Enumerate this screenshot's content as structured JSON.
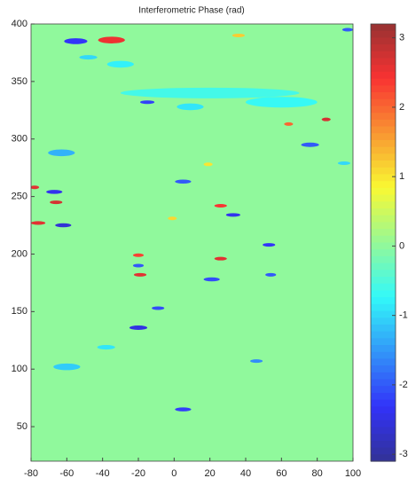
{
  "chart_data": {
    "type": "heatmap",
    "title": "Interferometric Phase (rad)",
    "xlim": [
      -80,
      100
    ],
    "xticks": [
      -80,
      -60,
      -40,
      -20,
      0,
      20,
      40,
      60,
      80,
      100
    ],
    "ylim": [
      20,
      400
    ],
    "yticks": [
      50,
      100,
      150,
      200,
      250,
      300,
      350,
      400
    ],
    "clim": [
      -3.1,
      3.2
    ],
    "cticks": [
      -3,
      -2,
      -1,
      0,
      1,
      2,
      3
    ],
    "colormap": "jet",
    "background_value": 0,
    "patches": [
      {
        "x": -55,
        "y": 385,
        "w": 13,
        "value": -2.3
      },
      {
        "x": -35,
        "y": 386,
        "w": 15,
        "value": 2.5
      },
      {
        "x": -78,
        "y": 258,
        "w": 5,
        "value": 2.6
      },
      {
        "x": -67,
        "y": 254,
        "w": 9,
        "value": -2.4
      },
      {
        "x": -66,
        "y": 245,
        "w": 7,
        "value": 2.7
      },
      {
        "x": -76,
        "y": 227,
        "w": 8,
        "value": 2.6
      },
      {
        "x": -62,
        "y": 225,
        "w": 9,
        "value": -2.6
      },
      {
        "x": 20,
        "y": 340,
        "w": 100,
        "value": -0.6
      },
      {
        "x": 60,
        "y": 332,
        "w": 40,
        "value": -0.7
      },
      {
        "x": -15,
        "y": 332,
        "w": 8,
        "value": -2.2
      },
      {
        "x": 76,
        "y": 295,
        "w": 10,
        "value": -2.0
      },
      {
        "x": 85,
        "y": 317,
        "w": 5,
        "value": 2.7
      },
      {
        "x": 5,
        "y": 263,
        "w": 9,
        "value": -2.0
      },
      {
        "x": 33,
        "y": 234,
        "w": 8,
        "value": -2.4
      },
      {
        "x": 26,
        "y": 242,
        "w": 7,
        "value": 2.4
      },
      {
        "x": 26,
        "y": 196,
        "w": 7,
        "value": 2.6
      },
      {
        "x": 53,
        "y": 208,
        "w": 7,
        "value": -2.3
      },
      {
        "x": 21,
        "y": 178,
        "w": 9,
        "value": -2.1
      },
      {
        "x": -19,
        "y": 182,
        "w": 7,
        "value": 2.6
      },
      {
        "x": -20,
        "y": 199,
        "w": 6,
        "value": 2.3
      },
      {
        "x": -20,
        "y": 190,
        "w": 6,
        "value": -2.0
      },
      {
        "x": -9,
        "y": 153,
        "w": 7,
        "value": -2.1
      },
      {
        "x": -20,
        "y": 136,
        "w": 10,
        "value": -2.5
      },
      {
        "x": 5,
        "y": 65,
        "w": 9,
        "value": -2.2
      },
      {
        "x": 46,
        "y": 107,
        "w": 7,
        "value": -1.6
      },
      {
        "x": 54,
        "y": 182,
        "w": 6,
        "value": -2.0
      },
      {
        "x": -1,
        "y": 231,
        "w": 5,
        "value": 1.1
      },
      {
        "x": 9,
        "y": 328,
        "w": 15,
        "value": -0.9
      },
      {
        "x": -60,
        "y": 102,
        "w": 15,
        "value": -1.1
      },
      {
        "x": -63,
        "y": 288,
        "w": 15,
        "value": -1.3
      },
      {
        "x": 19,
        "y": 278,
        "w": 5,
        "value": 1.0
      },
      {
        "x": 95,
        "y": 279,
        "w": 7,
        "value": -1.0
      },
      {
        "x": -48,
        "y": 371,
        "w": 10,
        "value": -1.0
      },
      {
        "x": 36,
        "y": 390,
        "w": 7,
        "value": 1.2
      },
      {
        "x": 97,
        "y": 395,
        "w": 6,
        "value": -2.0
      },
      {
        "x": -30,
        "y": 365,
        "w": 15,
        "value": -0.8
      },
      {
        "x": -38,
        "y": 119,
        "w": 10,
        "value": -0.9
      },
      {
        "x": 64,
        "y": 313,
        "w": 5,
        "value": 2.0
      }
    ]
  }
}
